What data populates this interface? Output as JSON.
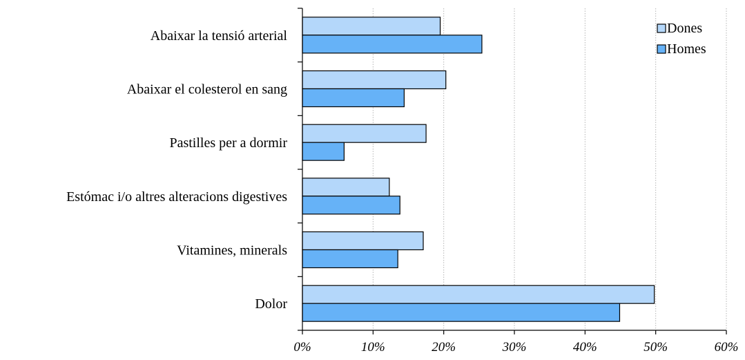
{
  "chart_data": {
    "type": "bar",
    "orientation": "horizontal",
    "title": "",
    "xlabel": "",
    "ylabel": "",
    "categories": [
      "Abaixar la tensió arterial",
      "Abaixar el colesterol en sang",
      "Pastilles per a dormir",
      "Estómac i/o altres alteracions digestives",
      "Vitamines, minerals",
      "Dolor"
    ],
    "series": [
      {
        "name": "Dones",
        "color": "#b4d7fa",
        "values": [
          19.5,
          20.3,
          17.5,
          12.3,
          17.1,
          49.8
        ]
      },
      {
        "name": "Homes",
        "color": "#66b2f7",
        "values": [
          25.4,
          14.4,
          5.9,
          13.8,
          13.5,
          44.9
        ]
      }
    ],
    "xlim": [
      0,
      60
    ],
    "xticks": [
      0,
      10,
      20,
      30,
      40,
      50,
      60
    ],
    "tick_suffix": "%",
    "grid": true,
    "legend": "top-right"
  }
}
